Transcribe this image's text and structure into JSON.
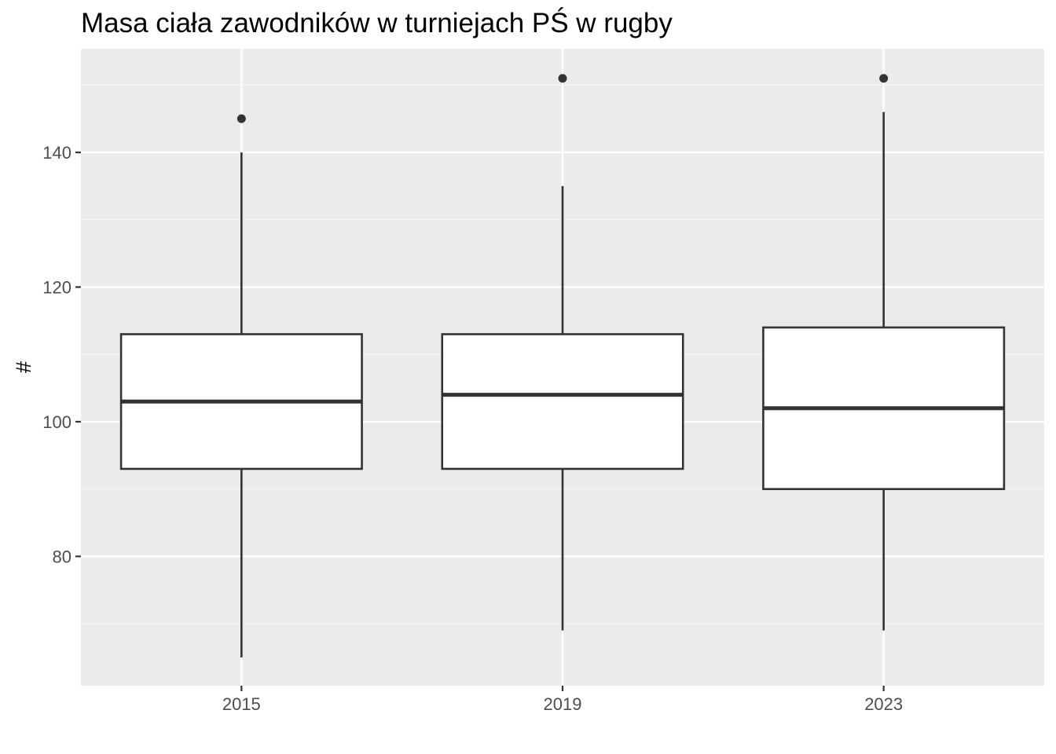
{
  "chart_data": {
    "type": "box",
    "title": "Masa ciała zawodników w turniejach PŚ w rugby",
    "xlabel": "",
    "ylabel": "#",
    "ylim": [
      60.8,
      155.4
    ],
    "yticks": [
      80,
      100,
      120,
      140
    ],
    "grid": true,
    "legend": "none",
    "categories": [
      "2015",
      "2019",
      "2023"
    ],
    "boxes": [
      {
        "category": "2015",
        "whisker_low": 65,
        "q1": 93,
        "median": 103,
        "q3": 113,
        "whisker_high": 140,
        "outliers": [
          145
        ]
      },
      {
        "category": "2019",
        "whisker_low": 69,
        "q1": 93,
        "median": 104,
        "q3": 113,
        "whisker_high": 135,
        "outliers": [
          151
        ]
      },
      {
        "category": "2023",
        "whisker_low": 69,
        "q1": 90,
        "median": 102,
        "q3": 114,
        "whisker_high": 146,
        "outliers": [
          151
        ]
      }
    ],
    "colors": {
      "panel_background": "#ebebeb",
      "grid_major": "#ffffff",
      "grid_minor": "#f7f7f7",
      "box_fill": "#ffffff",
      "box_stroke": "#333333",
      "tick_mark": "#333333",
      "tick_label": "#4d4d4d"
    }
  }
}
